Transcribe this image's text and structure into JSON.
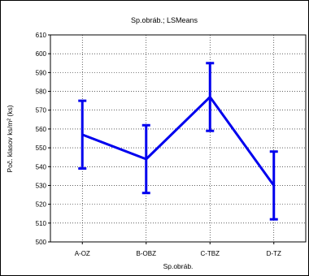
{
  "chart_data": {
    "type": "line",
    "title": "Sp.obráb.; LSMeans",
    "xlabel": "Sp.obráb.",
    "ylabel": "Poč. klasov ks/m² (ks)",
    "categories": [
      "A-OZ",
      "B-OBZ",
      "C-TBZ",
      "D-TZ"
    ],
    "series": [
      {
        "values": [
          557,
          544,
          577,
          530
        ],
        "lower": [
          539,
          526,
          559,
          512
        ],
        "upper": [
          575,
          562,
          595,
          548
        ]
      }
    ],
    "ylim": [
      500,
      610
    ],
    "yticks": [
      500,
      510,
      520,
      530,
      540,
      550,
      560,
      570,
      580,
      590,
      600,
      610
    ],
    "grid": true,
    "line_color": "#0000ee"
  }
}
